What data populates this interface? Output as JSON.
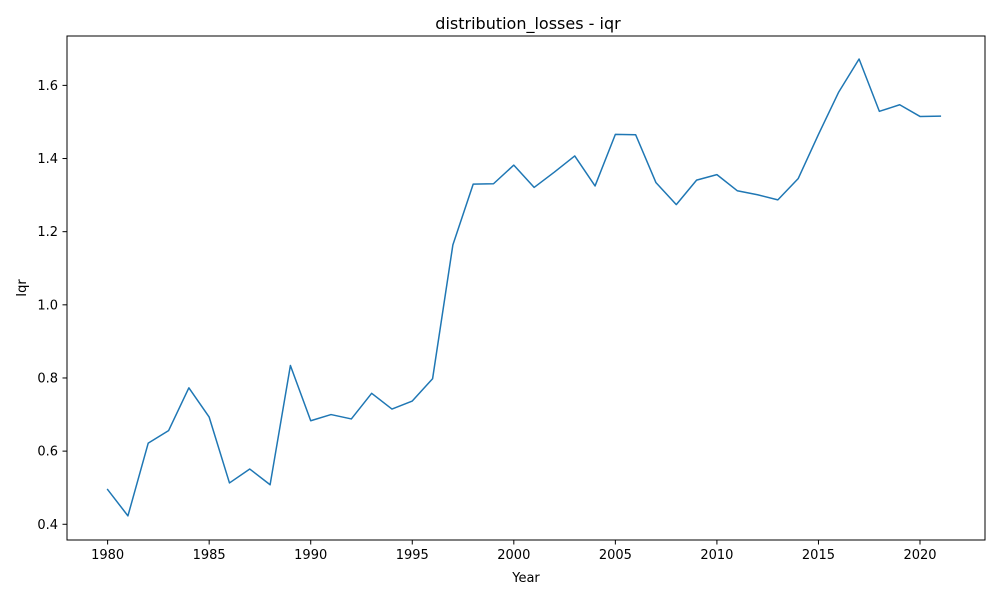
{
  "chart_data": {
    "type": "line",
    "title": "distribution_losses - iqr",
    "xlabel": "Year",
    "ylabel": "Iqr",
    "xlim": [
      1978,
      2023.2
    ],
    "ylim": [
      0.357,
      1.735
    ],
    "grid": false,
    "x_ticks": [
      1980,
      1985,
      1990,
      1995,
      2000,
      2005,
      2010,
      2015,
      2020
    ],
    "x_tick_labels": [
      "1980",
      "1985",
      "1990",
      "1995",
      "2000",
      "2005",
      "2010",
      "2015",
      "2020"
    ],
    "y_ticks": [
      0.4,
      0.6,
      0.8,
      1.0,
      1.2,
      1.4,
      1.6
    ],
    "y_tick_labels": [
      "0.4",
      "0.6",
      "0.8",
      "1.0",
      "1.2",
      "1.4",
      "1.6"
    ],
    "series": [
      {
        "color": "#1f77b4",
        "x": [
          1980,
          1981,
          1982,
          1983,
          1984,
          1985,
          1986,
          1987,
          1988,
          1989,
          1990,
          1991,
          1992,
          1993,
          1994,
          1995,
          1996,
          1997,
          1998,
          1999,
          2000,
          2001,
          2002,
          2003,
          2004,
          2005,
          2006,
          2007,
          2008,
          2009,
          2010,
          2011,
          2012,
          2013,
          2014,
          2015,
          2016,
          2017,
          2018,
          2019,
          2020,
          2021
        ],
        "y": [
          0.495,
          0.423,
          0.622,
          0.656,
          0.773,
          0.693,
          0.513,
          0.551,
          0.508,
          0.834,
          0.683,
          0.7,
          0.688,
          0.758,
          0.715,
          0.737,
          0.798,
          1.164,
          1.33,
          1.331,
          1.382,
          1.321,
          1.363,
          1.407,
          1.325,
          1.466,
          1.465,
          1.334,
          1.274,
          1.341,
          1.356,
          1.312,
          1.301,
          1.287,
          1.345,
          1.466,
          1.582,
          1.672,
          1.529,
          1.547,
          1.515,
          1.516
        ]
      }
    ]
  }
}
